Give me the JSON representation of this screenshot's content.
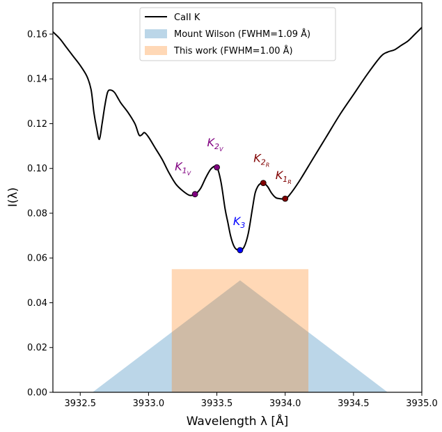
{
  "chart_data": {
    "type": "line",
    "xlabel": "Wavelength λ [Å]",
    "ylabel": "I(λ)",
    "xlim": [
      3932.3,
      3935.0
    ],
    "ylim": [
      0.0,
      0.174
    ],
    "xticks": [
      3932.5,
      3933.0,
      3933.5,
      3934.0,
      3934.5,
      3935.0
    ],
    "yticks": [
      0.0,
      0.02,
      0.04,
      0.06,
      0.08,
      0.1,
      0.12,
      0.14,
      0.16
    ],
    "grid": false,
    "legend_position": "top-center",
    "series": [
      {
        "name": "CaII K",
        "kind": "line",
        "color": "#000000",
        "x": [
          3932.3,
          3932.35,
          3932.4,
          3932.45,
          3932.5,
          3932.55,
          3932.58,
          3932.6,
          3932.62,
          3932.64,
          3932.66,
          3932.68,
          3932.7,
          3932.72,
          3932.75,
          3932.78,
          3932.8,
          3932.85,
          3932.9,
          3932.93,
          3932.95,
          3932.97,
          3933.0,
          3933.05,
          3933.1,
          3933.15,
          3933.2,
          3933.25,
          3933.3,
          3933.34,
          3933.38,
          3933.42,
          3933.46,
          3933.5,
          3933.53,
          3933.56,
          3933.58,
          3933.6,
          3933.62,
          3933.64,
          3933.67,
          3933.7,
          3933.73,
          3933.76,
          3933.78,
          3933.8,
          3933.82,
          3933.84,
          3933.87,
          3933.9,
          3933.93,
          3933.96,
          3934.0,
          3934.03,
          3934.1,
          3934.2,
          3934.3,
          3934.4,
          3934.5,
          3934.6,
          3934.7,
          3934.75,
          3934.8,
          3934.85,
          3934.9,
          3934.95,
          3935.0
        ],
        "y": [
          0.161,
          0.158,
          0.154,
          0.15,
          0.146,
          0.141,
          0.135,
          0.125,
          0.118,
          0.113,
          0.12,
          0.128,
          0.134,
          0.135,
          0.134,
          0.131,
          0.129,
          0.125,
          0.12,
          0.115,
          0.115,
          0.116,
          0.114,
          0.109,
          0.104,
          0.098,
          0.093,
          0.09,
          0.088,
          0.0885,
          0.091,
          0.096,
          0.1,
          0.1005,
          0.094,
          0.082,
          0.076,
          0.07,
          0.066,
          0.064,
          0.0635,
          0.065,
          0.071,
          0.082,
          0.089,
          0.092,
          0.0933,
          0.0935,
          0.092,
          0.089,
          0.087,
          0.0865,
          0.0865,
          0.088,
          0.094,
          0.104,
          0.114,
          0.124,
          0.133,
          0.142,
          0.15,
          0.152,
          0.153,
          0.155,
          0.157,
          0.16,
          0.163
        ]
      },
      {
        "name": "Mount Wilson (FWHM=1.09 Å)",
        "kind": "triangle",
        "color": "#1f77b4",
        "opacity": 0.3,
        "x": [
          3932.59,
          3933.67,
          3934.75
        ],
        "y": [
          0.0,
          0.05,
          0.0
        ]
      },
      {
        "name": "This work (FWHM=1.00 Å)",
        "kind": "rectangle",
        "color": "#ff7f0e",
        "opacity": 0.3,
        "x": [
          3933.17,
          3934.17
        ],
        "y": [
          0.0,
          0.055
        ]
      }
    ],
    "points": [
      {
        "label": "K",
        "sub": "1",
        "subsub": "V",
        "x": 3933.34,
        "y": 0.0885,
        "color": "#800080",
        "label_dx": -6,
        "label_dy": -34,
        "anchor": "end"
      },
      {
        "label": "K",
        "sub": "2",
        "subsub": "V",
        "x": 3933.5,
        "y": 0.1005,
        "color": "#800080",
        "label_dx": -14,
        "label_dy": -30,
        "anchor": "start"
      },
      {
        "label": "K",
        "sub": "3",
        "subsub": "",
        "x": 3933.67,
        "y": 0.0635,
        "color": "#0000ff",
        "label_dx": -10,
        "label_dy": -36,
        "anchor": "start"
      },
      {
        "label": "K",
        "sub": "2",
        "subsub": "R",
        "x": 3933.84,
        "y": 0.0935,
        "color": "#800000",
        "label_dx": -14,
        "label_dy": -30,
        "anchor": "start"
      },
      {
        "label": "K",
        "sub": "1",
        "subsub": "R",
        "x": 3934.0,
        "y": 0.0865,
        "color": "#800000",
        "label_dx": -14,
        "label_dy": -28,
        "anchor": "start"
      }
    ]
  }
}
